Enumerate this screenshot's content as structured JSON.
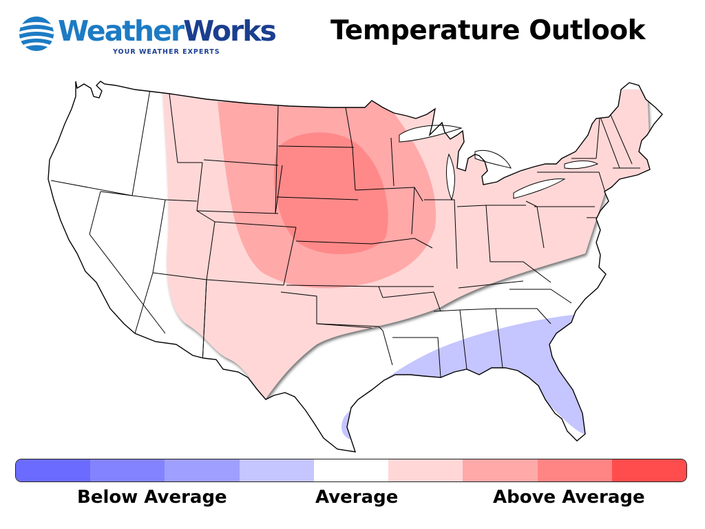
{
  "header": {
    "logo_name": "WeatherWorks",
    "logo_tagline": "YOUR WEATHER EXPERTS",
    "title": "Temperature Outlook"
  },
  "colors": {
    "brand_blue": "#1c7bc4",
    "brand_navy": "#1b3f8f",
    "above_1": "#ffd7d7",
    "above_2": "#ffa9a9",
    "above_3": "#ff8989",
    "below_1": "#c5c5ff"
  },
  "legend": {
    "scale": [
      "#6b6bff",
      "#8383ff",
      "#9f9fff",
      "#c5c5ff",
      "#ffffff",
      "#ffd7d7",
      "#ffa9a9",
      "#ff8585",
      "#ff4d4d"
    ],
    "labels": {
      "below": "Below Average",
      "average": "Average",
      "above": "Above Average"
    }
  },
  "map": {
    "region": "Contiguous United States",
    "outlook_areas": [
      {
        "category": "above_average_1",
        "description": "West, Plains, Midwest, Ohio Valley, Mid-Atlantic"
      },
      {
        "category": "above_average_2",
        "description": "Northern and Central Plains, Upper Midwest"
      },
      {
        "category": "above_average_3",
        "description": "South Dakota, Nebraska, Iowa"
      },
      {
        "category": "below_average_1",
        "description": "Gulf Coast, Florida, coastal Southeast"
      }
    ]
  }
}
